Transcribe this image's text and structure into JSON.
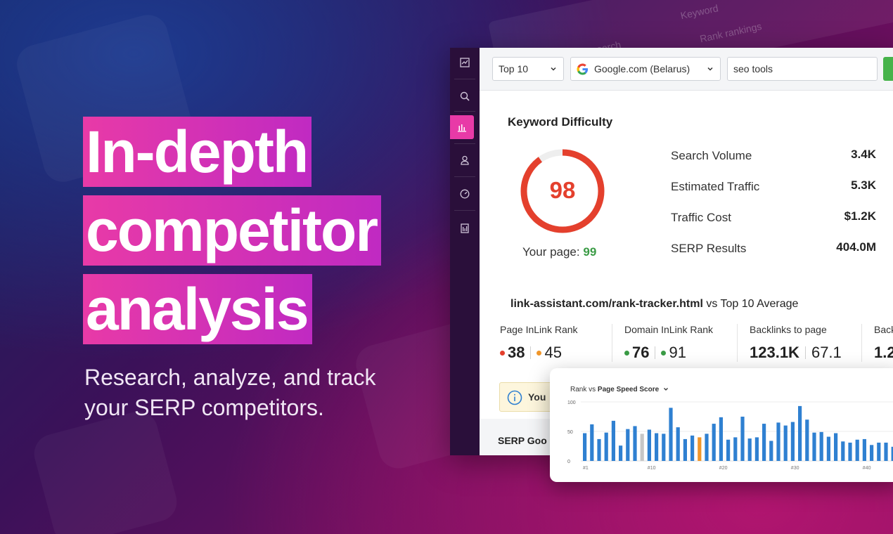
{
  "background_items": [
    "Keyword Research",
    "Keyword",
    "Rank rankings"
  ],
  "headline": {
    "lines": [
      "In-depth",
      "competitor",
      "analysis"
    ],
    "subtitle": "Research, analyze, and track your SERP competitors."
  },
  "toolbar": {
    "top_select": "Top 10",
    "engine_select": "Google.com (Belarus)",
    "keyword_input": "seo tools"
  },
  "sidebar": {
    "icons": [
      "dashboard-icon",
      "search-icon",
      "bar-chart-icon",
      "user-icon",
      "gauge-icon",
      "report-icon"
    ],
    "active_index": 2
  },
  "keyword_difficulty": {
    "title": "Keyword Difficulty",
    "score": "98",
    "score_fraction": 0.98,
    "your_page_label": "Your page:",
    "your_page_value": "99"
  },
  "metrics": [
    {
      "label": "Search Volume",
      "value": "3.4K"
    },
    {
      "label": "Estimated Traffic",
      "value": "5.3K"
    },
    {
      "label": "Traffic Cost",
      "value": "$1.2K"
    },
    {
      "label": "SERP Results",
      "value": "404.0M"
    }
  ],
  "comparison": {
    "url": "link-assistant.com/rank-tracker.html",
    "suffix": "vs Top 10 Average",
    "stats": [
      {
        "label": "Page InLink Rank",
        "own": "38",
        "avg": "45",
        "own_color": "#e4402d",
        "avg_color": "#f0962a"
      },
      {
        "label": "Domain InLink Rank",
        "own": "76",
        "avg": "91",
        "own_color": "#3a9b45",
        "avg_color": "#3a9b45"
      },
      {
        "label": "Backlinks to page",
        "own": "123.1K",
        "avg": "67.1"
      },
      {
        "label": "Back",
        "own": "1.2"
      }
    ]
  },
  "notice": {
    "text": "You"
  },
  "serp_section": {
    "title": "SERP Goo"
  },
  "colors": {
    "accent_pink": "#e83aa7",
    "gauge_red": "#e4402d",
    "bar_blue": "#2f80d1",
    "bar_orange": "#f0962a",
    "bar_gray": "#c7c7c7"
  },
  "chart_data": {
    "type": "bar",
    "title": "Rank vs Page Speed Score",
    "title_prefix": "Rank vs",
    "title_bold": "Page Speed Score",
    "ylim": [
      0,
      100
    ],
    "yticks": [
      "100",
      "50",
      "0"
    ],
    "xtick_labels": [
      "#1",
      "#10",
      "#20",
      "#30",
      "#40"
    ],
    "xtick_positions": [
      1,
      10,
      20,
      30,
      40
    ],
    "highlight": {
      "16": "#f0962a",
      "8": "#c7c7c7"
    },
    "values": [
      47,
      62,
      37,
      48,
      68,
      26,
      54,
      59,
      46,
      53,
      47,
      46,
      90,
      57,
      37,
      43,
      40,
      46,
      63,
      74,
      36,
      40,
      75,
      38,
      40,
      63,
      34,
      65,
      60,
      66,
      93,
      70,
      48,
      49,
      41,
      47,
      33,
      31,
      36,
      37,
      27,
      31,
      31,
      24,
      60
    ]
  }
}
